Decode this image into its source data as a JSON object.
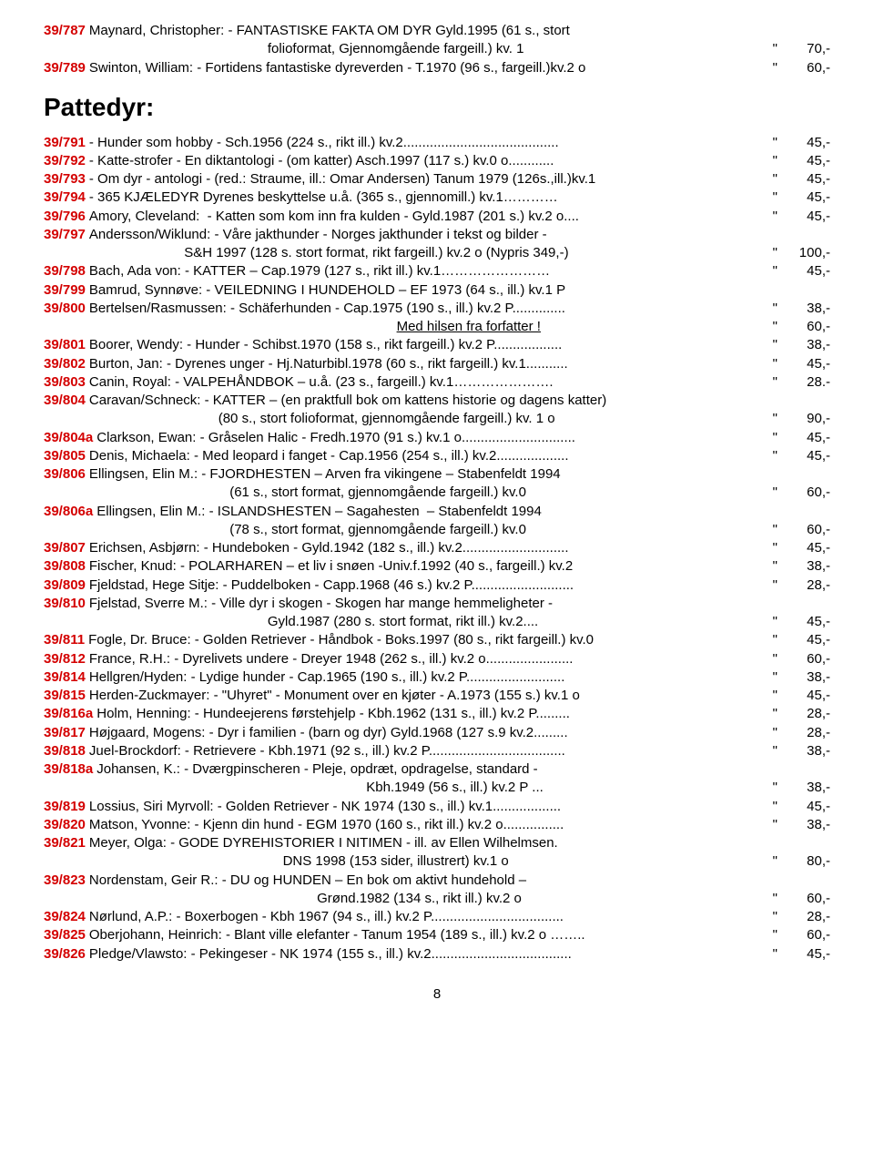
{
  "heading": "Pattedyr:",
  "page_number": "8",
  "top": [
    {
      "ref": "39/787",
      "desc": "Maynard, Christopher: - FANTASTISKE FAKTA OM DYR Gyld.1995 (61 s., stort",
      "mark": "",
      "price": ""
    },
    {
      "ref": "",
      "desc": "                                                           folioformat, Gjennomgående fargeill.) kv. 1",
      "mark": "\"",
      "price": "70,-"
    },
    {
      "ref": "39/789",
      "desc": "Swinton, William: - Fortidens fantastiske dyreverden - T.1970 (96 s., fargeill.)kv.2 o",
      "mark": "\"",
      "price": "60,-"
    }
  ],
  "items": [
    {
      "ref": "39/791",
      "desc": "- Hunder som hobby - Sch.1956 (224 s., rikt ill.) kv.2.........................................",
      "mark": "\"",
      "price": "45,-"
    },
    {
      "ref": "39/792",
      "desc": "- Katte-strofer - En diktantologi - (om katter) Asch.1997 (117 s.) kv.0 o............",
      "mark": "\"",
      "price": "45,-"
    },
    {
      "ref": "39/793",
      "desc": "- Om dyr - antologi - (red.: Straume, ill.: Omar Andersen) Tanum 1979 (126s.,ill.)kv.1",
      "mark": "\"",
      "price": "45,-"
    },
    {
      "ref": "39/794",
      "desc": "- 365 KJÆLEDYR Dyrenes beskyttelse u.å. (365 s., gjennomill.) kv.1…………",
      "mark": "\"",
      "price": "45,-"
    },
    {
      "ref": "39/796",
      "desc": "Amory, Cleveland:  - Katten som kom inn fra kulden - Gyld.1987 (201 s.) kv.2 o....",
      "mark": "\"",
      "price": "45,-"
    },
    {
      "ref": "39/797",
      "desc": "Andersson/Wiklund: - Våre jakthunder - Norges jakthunder i tekst og bilder -",
      "mark": "",
      "price": ""
    },
    {
      "ref": "",
      "desc": "                                     S&H 1997 (128 s. stort format, rikt fargeill.) kv.2 o (Nypris 349,-)",
      "mark": "\"",
      "price": "100,-"
    },
    {
      "ref": "39/798",
      "desc": "Bach, Ada von: - KATTER – Cap.1979 (127 s., rikt ill.) kv.1……………………",
      "mark": "\"",
      "price": "45,-"
    },
    {
      "ref": "39/799",
      "desc": "Bamrud, Synnøve: - VEILEDNING I HUNDEHOLD – EF 1973 (64 s., ill.) kv.1 P",
      "mark": "",
      "price": ""
    },
    {
      "ref": "39/800",
      "desc": "Bertelsen/Rasmussen: - Schäferhunden - Cap.1975 (190 s., ill.) kv.2 P..............",
      "mark": "\"",
      "price": "38,-"
    },
    {
      "ref": "",
      "desc": "                                                                                             ",
      "tail_underline": "Med hilsen fra forfatter !",
      "mark": "\"",
      "price": "60,-"
    },
    {
      "ref": "39/801",
      "desc": "Boorer, Wendy: - Hunder - Schibst.1970 (158 s., rikt fargeill.) kv.2 P..................",
      "mark": "\"",
      "price": "38,-"
    },
    {
      "ref": "39/802",
      "desc": "Burton, Jan: - Dyrenes unger - Hj.Naturbibl.1978 (60 s., rikt fargeill.) kv.1...........",
      "mark": "\"",
      "price": "45,-"
    },
    {
      "ref": "39/803",
      "desc": "Canin, Royal: - VALPEHÅNDBOK – u.å. (23 s., fargeill.) kv.1………………….",
      "mark": "\"",
      "price": "28.-"
    },
    {
      "ref": "39/804",
      "desc": "Caravan/Schneck: - KATTER – (en praktfull bok om kattens historie og dagens katter)",
      "mark": "",
      "price": ""
    },
    {
      "ref": "",
      "desc": "                                              (80 s., stort folioformat, gjennomgående fargeill.) kv. 1 o",
      "mark": "\"",
      "price": "90,-"
    },
    {
      "ref": "39/804a",
      "desc": "Clarkson, Ewan: - Gråselen Halic - Fredh.1970 (91 s.) kv.1 o..............................",
      "mark": "\"",
      "price": "45,-"
    },
    {
      "ref": "39/805",
      "desc": "Denis, Michaela: - Med leopard i fanget - Cap.1956 (254 s., ill.) kv.2...................",
      "mark": "\"",
      "price": "45,-"
    },
    {
      "ref": "39/806",
      "desc": "Ellingsen, Elin M.: - FJORDHESTEN – Arven fra vikingene – Stabenfeldt 1994",
      "mark": "",
      "price": ""
    },
    {
      "ref": "",
      "desc": "                                                 (61 s., stort format, gjennomgående fargeill.) kv.0",
      "mark": "\"",
      "price": "60,-"
    },
    {
      "ref": "39/806a",
      "desc": "Ellingsen, Elin M.: - ISLANDSHESTEN – Sagahesten  – Stabenfeldt 1994",
      "mark": "",
      "price": ""
    },
    {
      "ref": "",
      "desc": "                                                 (78 s., stort format, gjennomgående fargeill.) kv.0",
      "mark": "\"",
      "price": "60,-"
    },
    {
      "ref": "39/807",
      "desc": "Erichsen, Asbjørn: - Hundeboken - Gyld.1942 (182 s., ill.) kv.2............................",
      "mark": "\"",
      "price": "45,-"
    },
    {
      "ref": "39/808",
      "desc": "Fischer, Knud: - POLARHAREN – et liv i snøen -Univ.f.1992 (40 s., fargeill.) kv.2",
      "mark": "\"",
      "price": "38,-"
    },
    {
      "ref": "39/809",
      "desc": "Fjeldstad, Hege Sitje: - Puddelboken - Capp.1968 (46 s.) kv.2 P...........................",
      "mark": "\"",
      "price": "28,-"
    },
    {
      "ref": "39/810",
      "desc": "Fjelstad, Sverre M.: - Ville dyr i skogen - Skogen har mange hemmeligheter -",
      "mark": "",
      "price": ""
    },
    {
      "ref": "",
      "desc": "                                                           Gyld.1987 (280 s. stort format, rikt ill.) kv.2....",
      "mark": "\"",
      "price": "45,-"
    },
    {
      "ref": "39/811",
      "desc": "Fogle, Dr. Bruce: - Golden Retriever - Håndbok - Boks.1997 (80 s., rikt fargeill.) kv.0",
      "mark": "\"",
      "price": "45,-"
    },
    {
      "ref": "39/812",
      "desc": "France, R.H.: - Dyrelivets undere - Dreyer 1948 (262 s., ill.) kv.2 o.......................",
      "mark": "\"",
      "price": "60,-"
    },
    {
      "ref": "39/814",
      "desc": "Hellgren/Hyden: - Lydige hunder - Cap.1965 (190 s., ill.) kv.2 P..........................",
      "mark": "\"",
      "price": "38,-"
    },
    {
      "ref": "39/815",
      "desc": "Herden-Zuckmayer: - \"Uhyret\" - Monument over en kjøter - A.1973 (155 s.) kv.1 o",
      "mark": "\"",
      "price": "45,-"
    },
    {
      "ref": "39/816a",
      "desc": "Holm, Henning: - Hundeejerens førstehjelp - Kbh.1962 (131 s., ill.) kv.2 P.........",
      "mark": "\"",
      "price": "28,-"
    },
    {
      "ref": "39/817",
      "desc": "Højgaard, Mogens: - Dyr i familien - (barn og dyr) Gyld.1968 (127 s.9 kv.2.........",
      "mark": "\"",
      "price": "28,-"
    },
    {
      "ref": "39/818",
      "desc": "Juel-Brockdorf: - Retrievere - Kbh.1971 (92 s., ill.) kv.2 P....................................",
      "mark": "\"",
      "price": "38,-"
    },
    {
      "ref": "39/818a",
      "desc": "Johansen, K.: - Dværgpinscheren - Pleje, opdræt, opdragelse, standard -",
      "mark": "",
      "price": ""
    },
    {
      "ref": "",
      "desc": "                                                                                     Kbh.1949 (56 s., ill.) kv.2 P ...",
      "mark": "\"",
      "price": "38,-"
    },
    {
      "ref": "39/819",
      "desc": "Lossius, Siri Myrvoll: - Golden Retriever - NK 1974 (130 s., ill.) kv.1..................",
      "mark": "\"",
      "price": "45,-"
    },
    {
      "ref": "39/820",
      "desc": "Matson, Yvonne: - Kjenn din hund - EGM 1970 (160 s., rikt ill.) kv.2 o................",
      "mark": "\"",
      "price": "38,-"
    },
    {
      "ref": "39/821",
      "desc": "Meyer, Olga: - GODE DYREHISTORIER I NITIMEN - ill. av Ellen Wilhelmsen.",
      "mark": "",
      "price": ""
    },
    {
      "ref": "",
      "desc": "                                                               DNS 1998 (153 sider, illustrert) kv.1 o",
      "mark": "\"",
      "price": "80,-"
    },
    {
      "ref": "39/823",
      "desc": "Nordenstam, Geir R.: - DU og HUNDEN – En bok om aktivt hundehold –",
      "mark": "",
      "price": ""
    },
    {
      "ref": "",
      "desc": "                                                                        Grønd.1982 (134 s., rikt ill.) kv.2 o",
      "mark": "\"",
      "price": "60,-"
    },
    {
      "ref": "39/824",
      "desc": "Nørlund, A.P.: - Boxerbogen - Kbh 1967 (94 s., ill.) kv.2 P...................................",
      "mark": "\"",
      "price": "28,-"
    },
    {
      "ref": "39/825",
      "desc": "Oberjohann, Heinrich: - Blant ville elefanter - Tanum 1954 (189 s., ill.) kv.2 o ……..",
      "mark": "\"",
      "price": "60,-"
    },
    {
      "ref": "39/826",
      "desc": "Pledge/Vlawsto: - Pekingeser - NK 1974 (155 s., ill.) kv.2.....................................",
      "mark": "\"",
      "price": "45,-"
    }
  ]
}
